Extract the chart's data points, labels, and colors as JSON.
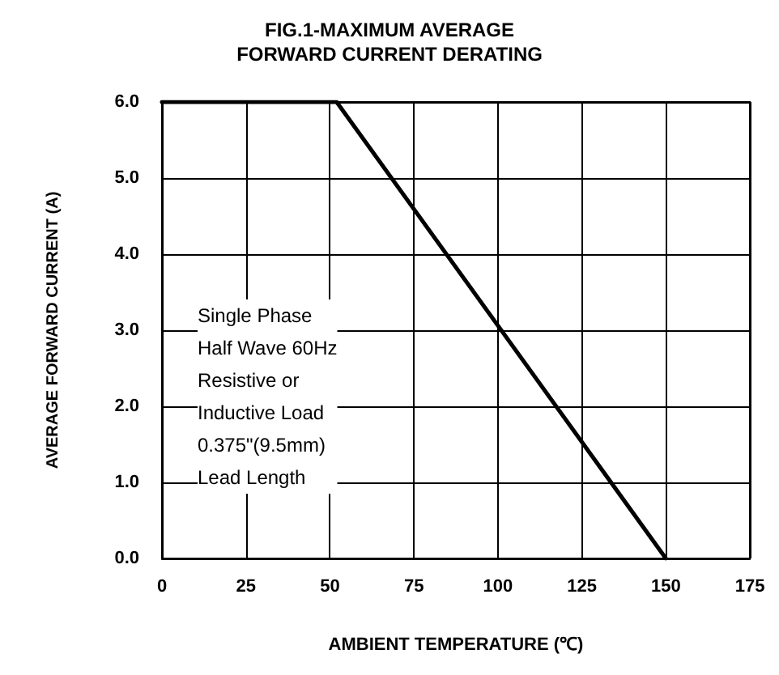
{
  "chart_data": {
    "type": "line",
    "title": "FIG.1-MAXIMUM AVERAGE\nFORWARD CURRENT DERATING",
    "xlabel": "AMBIENT TEMPERATURE (℃)",
    "ylabel": "AVERAGE FORWARD CURRENT (A)",
    "annotations": [
      "Single Phase\nHalf Wave 60Hz\nResistive or\nInductive Load\n0.375\"(9.5mm)\nLead Length"
    ],
    "series": [
      {
        "color": "#000000",
        "x": [
          0,
          52,
          150
        ],
        "values": [
          6,
          6,
          0
        ]
      }
    ],
    "xlim": [
      0,
      175
    ],
    "xticks": [
      0,
      25,
      50,
      75,
      100,
      125,
      150,
      175
    ],
    "ylim": [
      0,
      6
    ],
    "yticks": [
      {
        "value": 0,
        "label": "0.0"
      },
      {
        "value": 1,
        "label": "1.0"
      },
      {
        "value": 2,
        "label": "2.0"
      },
      {
        "value": 3,
        "label": "3.0"
      },
      {
        "value": 4,
        "label": "4.0"
      },
      {
        "value": 5,
        "label": "5.0"
      },
      {
        "value": 6,
        "label": "6.0"
      }
    ],
    "grid": true,
    "marker": "none",
    "line_style": "solid"
  }
}
